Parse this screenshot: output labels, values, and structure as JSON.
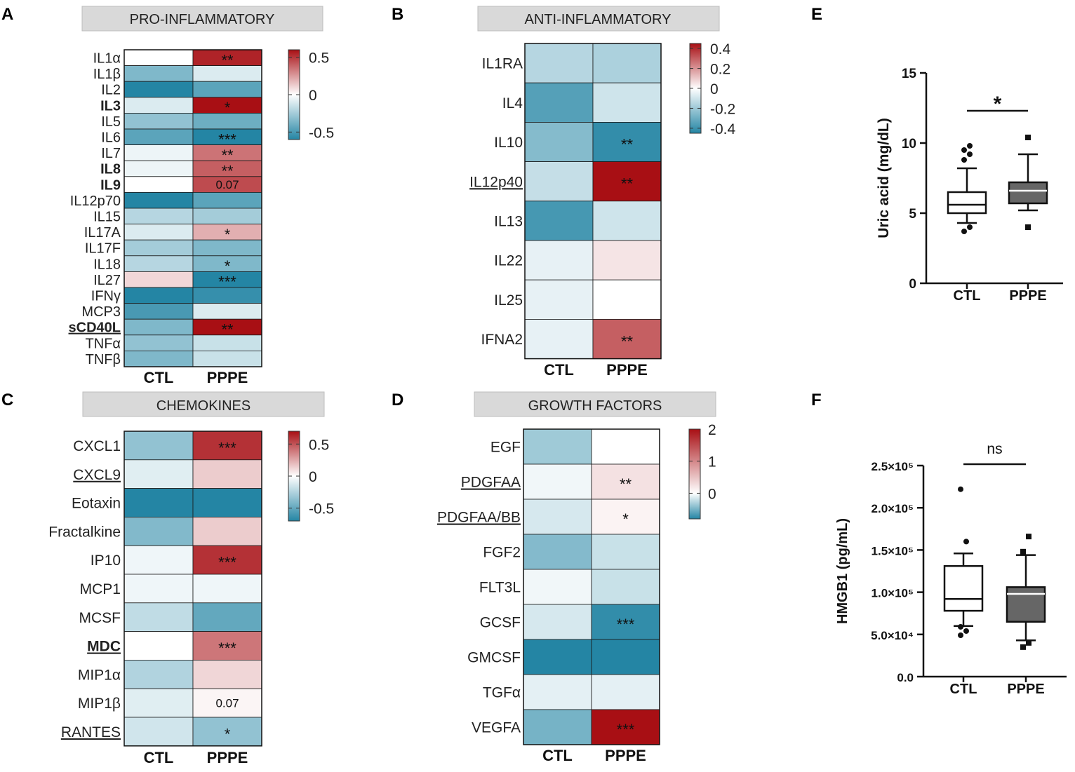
{
  "figure": {
    "panel_letters": {
      "A": "A",
      "B": "B",
      "C": "C",
      "D": "D",
      "E": "E",
      "F": "F"
    }
  },
  "colors": {
    "red": "#a80f14",
    "white": "#ffffff",
    "teal": "#2485a4",
    "banner": "#d9d9d9"
  },
  "chart_data": [
    {
      "panel": "A",
      "type": "heatmap",
      "title": "PRO-INFLAMMATORY",
      "columns": [
        "CTL",
        "PPPE"
      ],
      "rows": [
        "IL1α",
        "IL1β",
        "IL2",
        "IL3",
        "IL5",
        "IL6",
        "IL7",
        "IL8",
        "IL9",
        "IL12p70",
        "IL15",
        "IL17A",
        "IL17F",
        "IL18",
        "IL27",
        "IFNγ",
        "MCP3",
        "sCD40L",
        "TNFα",
        "TNFβ"
      ],
      "bold_rows": [
        "IL3",
        "IL8",
        "IL9",
        "sCD40L"
      ],
      "underlined_rows": [
        "sCD40L"
      ],
      "values": [
        [
          0.0,
          0.55
        ],
        [
          -0.35,
          -0.1
        ],
        [
          -0.6,
          -0.45
        ],
        [
          -0.1,
          0.6
        ],
        [
          -0.3,
          -0.4
        ],
        [
          -0.45,
          -0.75
        ],
        [
          -0.05,
          0.35
        ],
        [
          -0.05,
          0.4
        ],
        [
          0.0,
          0.45
        ],
        [
          -0.6,
          -0.45
        ],
        [
          -0.2,
          -0.25
        ],
        [
          -0.1,
          0.2
        ],
        [
          -0.25,
          -0.35
        ],
        [
          -0.2,
          -0.35
        ],
        [
          0.1,
          -0.7
        ],
        [
          -0.6,
          -0.55
        ],
        [
          -0.5,
          -0.1
        ],
        [
          -0.35,
          0.6
        ],
        [
          -0.3,
          -0.15
        ],
        [
          -0.35,
          -0.15
        ]
      ],
      "annotations": [
        [
          "",
          "**"
        ],
        [
          "",
          ""
        ],
        [
          "",
          ""
        ],
        [
          "",
          "*"
        ],
        [
          "",
          ""
        ],
        [
          "",
          "***"
        ],
        [
          "",
          "**"
        ],
        [
          "",
          "**"
        ],
        [
          "",
          "0.07"
        ],
        [
          "",
          ""
        ],
        [
          "",
          ""
        ],
        [
          "",
          "*"
        ],
        [
          "",
          ""
        ],
        [
          "",
          "*"
        ],
        [
          "",
          "***"
        ],
        [
          "",
          ""
        ],
        [
          "",
          ""
        ],
        [
          "",
          "**"
        ],
        [
          "",
          ""
        ],
        [
          "",
          ""
        ]
      ],
      "scale": {
        "min": -0.6,
        "max": 0.6,
        "ticks": [
          0.5,
          0,
          -0.5
        ],
        "tick_labels": [
          "0.5",
          "0",
          "-0.5"
        ]
      }
    },
    {
      "panel": "B",
      "type": "heatmap",
      "title": "ANTI-INFLAMMATORY",
      "columns": [
        "CTL",
        "PPPE"
      ],
      "rows": [
        "IL1RA",
        "IL4",
        "IL10",
        "IL12p40",
        "IL13",
        "IL22",
        "IL25",
        "IFNA2"
      ],
      "bold_rows": [],
      "underlined_rows": [
        "IL12p40"
      ],
      "values": [
        [
          -0.15,
          -0.17
        ],
        [
          -0.35,
          -0.1
        ],
        [
          -0.25,
          -0.42
        ],
        [
          -0.12,
          0.45
        ],
        [
          -0.38,
          -0.1
        ],
        [
          -0.05,
          0.05
        ],
        [
          -0.05,
          0.0
        ],
        [
          -0.05,
          0.3
        ]
      ],
      "annotations": [
        [
          "",
          ""
        ],
        [
          "",
          ""
        ],
        [
          "",
          "**"
        ],
        [
          "",
          "**"
        ],
        [
          "",
          ""
        ],
        [
          "",
          ""
        ],
        [
          "",
          ""
        ],
        [
          "",
          "**"
        ]
      ],
      "scale": {
        "min": -0.45,
        "max": 0.45,
        "ticks": [
          0.4,
          0.2,
          0,
          -0.2,
          -0.4
        ],
        "tick_labels": [
          "0.4",
          "0.2",
          "0",
          "-0.2",
          "-0.4"
        ]
      }
    },
    {
      "panel": "C",
      "type": "heatmap",
      "title": "CHEMOKINES",
      "columns": [
        "CTL",
        "PPPE"
      ],
      "rows": [
        "CXCL1",
        "CXCL9",
        "Eotaxin",
        "Fractalkine",
        "IP10",
        "MCP1",
        "MCSF",
        "MDC",
        "MIP1α",
        "MIP1β",
        "RANTES"
      ],
      "bold_rows": [
        "MDC"
      ],
      "underlined_rows": [
        "CXCL9",
        "MDC",
        "RANTES"
      ],
      "values": [
        [
          -0.35,
          0.6
        ],
        [
          -0.1,
          0.15
        ],
        [
          -0.7,
          -0.7
        ],
        [
          -0.4,
          0.15
        ],
        [
          -0.05,
          0.6
        ],
        [
          -0.05,
          -0.05
        ],
        [
          -0.2,
          -0.5
        ],
        [
          0.0,
          0.4
        ],
        [
          -0.25,
          0.12
        ],
        [
          -0.1,
          0.03
        ],
        [
          -0.15,
          -0.35
        ]
      ],
      "annotations": [
        [
          "",
          "***"
        ],
        [
          "",
          ""
        ],
        [
          "",
          ""
        ],
        [
          "",
          ""
        ],
        [
          "",
          "***"
        ],
        [
          "",
          ""
        ],
        [
          "",
          ""
        ],
        [
          "",
          "***"
        ],
        [
          "",
          ""
        ],
        [
          "",
          "0.07"
        ],
        [
          "",
          "*"
        ]
      ],
      "scale": {
        "min": -0.7,
        "max": 0.7,
        "ticks": [
          0.5,
          0,
          -0.5
        ],
        "tick_labels": [
          "0.5",
          "0",
          "-0.5"
        ]
      }
    },
    {
      "panel": "D",
      "type": "heatmap",
      "title": "GROWTH FACTORS",
      "columns": [
        "CTL",
        "PPPE"
      ],
      "rows": [
        "EGF",
        "PDGFAA",
        "PDGFAA/BB",
        "FGF2",
        "FLT3L",
        "GCSF",
        "GMCSF",
        "TGFα",
        "VEGFA"
      ],
      "bold_rows": [],
      "underlined_rows": [
        "PDGFAA",
        "PDGFAA/BB"
      ],
      "values": [
        [
          -0.35,
          0.0
        ],
        [
          -0.05,
          0.25
        ],
        [
          -0.15,
          0.1
        ],
        [
          -0.45,
          -0.2
        ],
        [
          -0.05,
          -0.2
        ],
        [
          -0.15,
          -0.75
        ],
        [
          -0.8,
          -0.8
        ],
        [
          -0.1,
          -0.1
        ],
        [
          -0.5,
          2.0
        ]
      ],
      "annotations": [
        [
          "",
          ""
        ],
        [
          "",
          "**"
        ],
        [
          "",
          "*"
        ],
        [
          "",
          ""
        ],
        [
          "",
          ""
        ],
        [
          "",
          "***"
        ],
        [
          "",
          ""
        ],
        [
          "",
          ""
        ],
        [
          "",
          "***"
        ]
      ],
      "scale": {
        "min": -0.8,
        "max": 2.0,
        "ticks": [
          2,
          1,
          0
        ],
        "tick_labels": [
          "2",
          "1",
          "0"
        ]
      }
    },
    {
      "panel": "E",
      "type": "box",
      "ylabel": "Uric acid (mg/dL)",
      "categories": [
        "CTL",
        "PPPE"
      ],
      "ylim": [
        0,
        15
      ],
      "yticks": [
        0,
        5,
        10,
        15
      ],
      "ytick_labels": [
        "0",
        "5",
        "10",
        "15"
      ],
      "significance": "*",
      "groups": [
        {
          "name": "CTL",
          "fill": "#ffffff",
          "whisker_low": 4.3,
          "q1": 5.0,
          "median": 5.6,
          "q3": 6.5,
          "whisker_high": 8.2,
          "outliers": [
            3.7,
            4.0,
            8.8,
            9.2,
            9.5,
            9.8
          ],
          "marker": "circle"
        },
        {
          "name": "PPPE",
          "fill": "#666666",
          "whisker_low": 5.2,
          "q1": 5.7,
          "median": 6.6,
          "q3": 7.2,
          "whisker_high": 9.2,
          "outliers": [
            4.0,
            10.4
          ],
          "marker": "square"
        }
      ]
    },
    {
      "panel": "F",
      "type": "box",
      "ylabel": "HMGB1 (pg/mL)",
      "categories": [
        "CTL",
        "PPPE"
      ],
      "ylim": [
        0,
        250000
      ],
      "yticks": [
        0,
        50000,
        100000,
        150000,
        200000,
        250000
      ],
      "ytick_labels": [
        "0.0",
        "5.0×10⁴",
        "1.0×10⁵",
        "1.5×10⁵",
        "2.0×10⁵",
        "2.5×10⁵"
      ],
      "significance": "ns",
      "groups": [
        {
          "name": "CTL",
          "fill": "#ffffff",
          "whisker_low": 60000,
          "q1": 78000,
          "median": 92000,
          "q3": 131000,
          "whisker_high": 146000,
          "outliers": [
            49000,
            54000,
            59000,
            160000,
            222000
          ],
          "marker": "circle"
        },
        {
          "name": "PPPE",
          "fill": "#666666",
          "whisker_low": 43000,
          "q1": 65000,
          "median": 98000,
          "q3": 106000,
          "whisker_high": 144000,
          "outliers": [
            35000,
            40000,
            148000,
            166000
          ],
          "marker": "square"
        }
      ]
    }
  ]
}
